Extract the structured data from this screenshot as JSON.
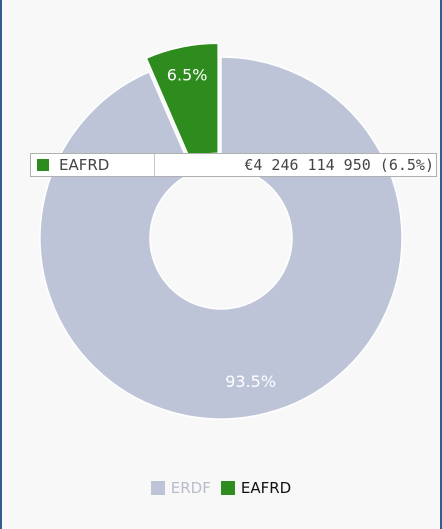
{
  "chart_data": {
    "type": "pie",
    "donut": true,
    "series": [
      {
        "name": "ERDF",
        "value_pct": 93.5,
        "label": "93.5%",
        "color": "#bec4d8",
        "legend_active": false
      },
      {
        "name": "EAFRD",
        "value_pct": 6.5,
        "label": "6.5%",
        "color": "#2e8b1e",
        "legend_active": true
      }
    ],
    "legend_position": "bottom",
    "tooltip": {
      "series_name": "EAFRD",
      "value_text": "€4 246 114 950 (6.5%)"
    }
  },
  "colors": {
    "legend_inactive_text": "#b8bccb",
    "legend_active_text": "#111111",
    "slice_label": "#ffffff",
    "border": "#2f5f8a"
  }
}
